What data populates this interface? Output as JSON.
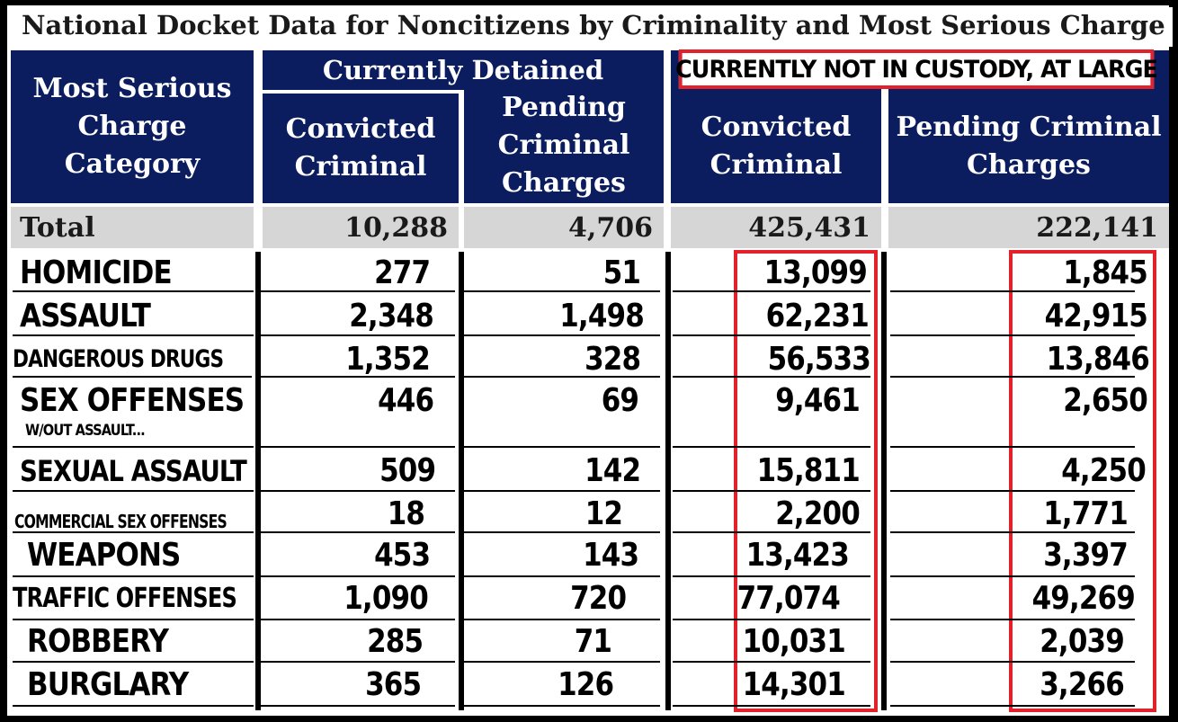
{
  "title": "National Docket Data for Noncitizens by Criminality and Most Serious Charge",
  "header": {
    "category": "Most Serious Charge Category",
    "group_detained": "Currently Detained",
    "group_large": "CURRENTLY NOT IN CUSTODY, AT LARGE",
    "c1": "Convicted Criminal",
    "c2": "Pending Criminal Charges",
    "c3": "Convicted Criminal",
    "c4": "Pending Criminal Charges"
  },
  "total": {
    "label": "Total",
    "c1": "10,288",
    "c2": "4,706",
    "c3": "425,431",
    "c4": "222,141"
  },
  "rows": [
    {
      "label": "HOMICIDE",
      "c1": "277",
      "c2": "51",
      "c3": "13,099",
      "c4": "1,845"
    },
    {
      "label": "ASSAULT",
      "c1": "2,348",
      "c2": "1,498",
      "c3": "62,231",
      "c4": "42,915"
    },
    {
      "label": "DANGEROUS DRUGS",
      "c1": "1,352",
      "c2": "328",
      "c3": "56,533",
      "c4": "13,846"
    },
    {
      "label": "SEX OFFENSES",
      "sublabel": "W/OUT ASSAULT...",
      "c1": "446",
      "c2": "69",
      "c3": "9,461",
      "c4": "2,650"
    },
    {
      "label": "SEXUAL ASSAULT",
      "c1": "509",
      "c2": "142",
      "c3": "15,811",
      "c4": "4,250"
    },
    {
      "label": "COMMERCIAL SEX OFFENSES",
      "c1": "18",
      "c2": "12",
      "c3": "2,200",
      "c4": "1,771"
    },
    {
      "label": "WEAPONS",
      "c1": "453",
      "c2": "143",
      "c3": "13,423",
      "c4": "3,397"
    },
    {
      "label": "TRAFFIC OFFENSES",
      "c1": "1,090",
      "c2": "720",
      "c3": "77,074",
      "c4": "49,269"
    },
    {
      "label": "ROBBERY",
      "c1": "285",
      "c2": "71",
      "c3": "10,031",
      "c4": "2,039"
    },
    {
      "label": "BURGLARY",
      "c1": "365",
      "c2": "126",
      "c3": "14,301",
      "c4": "3,266"
    }
  ],
  "colors": {
    "header_bg": "#0b1d5f",
    "total_bg": "#d6d6d6",
    "highlight": "#e3212a"
  }
}
